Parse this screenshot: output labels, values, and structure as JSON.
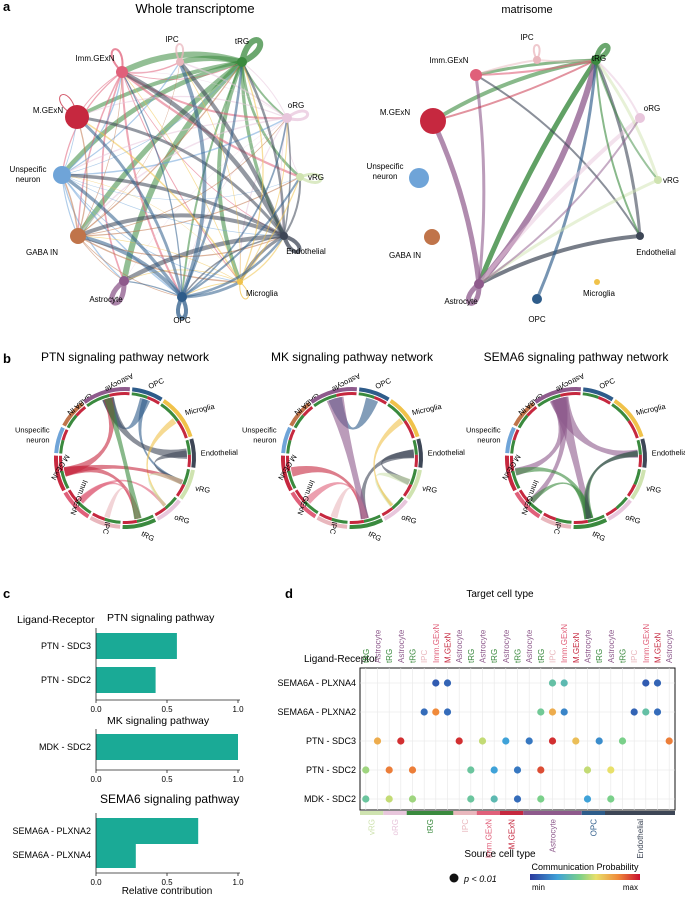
{
  "panel_letters": [
    "a",
    "b",
    "c",
    "d"
  ],
  "colors": {
    "vRG": "#cfe3b0",
    "oRG": "#e8c6dc",
    "tRG": "#3a8a3e",
    "IPC": "#e9b7bd",
    "Imm.GExN": "#e0607a",
    "M.GExN": "#c6283f",
    "Unspecific neuron": "#6fa4d8",
    "GABA IN": "#c0744a",
    "Astrocyte": "#8e5a8c",
    "OPC": "#2e5c8a",
    "Microglia": "#f0c24a",
    "Endothelial": "#3d4656",
    "bar": "#1aaa96"
  },
  "panel_a": {
    "net1": {
      "title": "Whole transcriptome",
      "nodes": [
        "IPC",
        "tRG",
        "Imm.GExN",
        "M.GExN",
        "oRG",
        "Unspecific neuron",
        "vRG",
        "GABA IN",
        "Endothelial",
        "Astrocyte",
        "Microglia",
        "OPC"
      ]
    },
    "net2": {
      "title": "matrisome",
      "nodes": [
        "IPC",
        "tRG",
        "Imm.GExN",
        "M.GExN",
        "oRG",
        "Unspecific neuron",
        "vRG",
        "GABA IN",
        "Endothelial",
        "Astrocyte",
        "Microglia",
        "OPC"
      ]
    }
  },
  "panel_b": {
    "charts": [
      {
        "title": "PTN signaling pathway network"
      },
      {
        "title": "MK signaling pathway network"
      },
      {
        "title": "SEMA6 signaling pathway network"
      }
    ],
    "sectors": [
      "OPC",
      "Microglia",
      "Endothelial",
      "vRG",
      "oRG",
      "tRG",
      "IPC",
      "Imm.GExN",
      "M.GExN",
      "Unspecific neuron",
      "GABA IN",
      "Astrocyte"
    ]
  },
  "chart_data": [
    {
      "type": "bar",
      "orientation": "horizontal",
      "title": "PTN signaling pathway",
      "ylabel": "Ligand-Receptor",
      "categories": [
        "PTN - SDC3",
        "PTN - SDC2"
      ],
      "values": [
        0.57,
        0.42
      ],
      "xlim": [
        0,
        1.0
      ],
      "xticks": [
        "0.0",
        "0.5",
        "1.0"
      ]
    },
    {
      "type": "bar",
      "orientation": "horizontal",
      "title": "MK signaling pathway",
      "categories": [
        "MDK - SDC2"
      ],
      "values": [
        1.0
      ],
      "xlim": [
        0,
        1.0
      ],
      "xticks": [
        "0.0",
        "0.5",
        "1.0"
      ]
    },
    {
      "type": "bar",
      "orientation": "horizontal",
      "title": "SEMA6 signaling pathway",
      "xlabel": "Relative contribution",
      "categories": [
        "SEMA6A - PLXNA2",
        "SEMA6A - PLXNA4"
      ],
      "values": [
        0.72,
        0.28
      ],
      "xlim": [
        0,
        1.0
      ],
      "xticks": [
        "0.0",
        "0.5",
        "1.0"
      ]
    },
    {
      "type": "scatter",
      "subtype": "dot-plot",
      "title": "Target cell type",
      "xlabel": "Source cell type",
      "ylabel": "Ligand-Receptor",
      "rows": [
        "SEMA6A - PLXNA4",
        "SEMA6A - PLXNA2",
        "PTN - SDC3",
        "PTN - SDC2",
        "MDK - SDC2"
      ],
      "target_columns": [
        "tRG",
        "Astrocyte",
        "tRG",
        "Astrocyte",
        "tRG",
        "IPC",
        "Imm.GExN",
        "M.GExN",
        "Astrocyte",
        "tRG",
        "Astrocyte",
        "tRG",
        "Astrocyte",
        "tRG",
        "Astrocyte",
        "tRG",
        "IPC",
        "Imm.GExN",
        "M.GExN",
        "Astrocyte",
        "tRG",
        "Astrocyte",
        "tRG",
        "IPC",
        "Imm.GExN",
        "M.GExN",
        "Astrocyte"
      ],
      "source_groups": [
        {
          "name": "vRG",
          "count": 2
        },
        {
          "name": "oRG",
          "count": 2
        },
        {
          "name": "tRG",
          "count": 4
        },
        {
          "name": "IPC",
          "count": 2
        },
        {
          "name": "Imm.GExN",
          "count": 2
        },
        {
          "name": "M.GExN",
          "count": 2
        },
        {
          "name": "Astrocyte",
          "count": 5
        },
        {
          "name": "OPC",
          "count": 2
        },
        {
          "name": "Endothelial",
          "count": 6
        }
      ],
      "points": [
        {
          "row": 0,
          "col": 6,
          "p": 0.08
        },
        {
          "row": 0,
          "col": 7,
          "p": 0.1
        },
        {
          "row": 0,
          "col": 16,
          "p": 0.38
        },
        {
          "row": 0,
          "col": 17,
          "p": 0.35
        },
        {
          "row": 0,
          "col": 24,
          "p": 0.08
        },
        {
          "row": 0,
          "col": 25,
          "p": 0.1
        },
        {
          "row": 1,
          "col": 5,
          "p": 0.12
        },
        {
          "row": 1,
          "col": 6,
          "p": 0.8
        },
        {
          "row": 1,
          "col": 7,
          "p": 0.12
        },
        {
          "row": 1,
          "col": 15,
          "p": 0.42
        },
        {
          "row": 1,
          "col": 16,
          "p": 0.72
        },
        {
          "row": 1,
          "col": 17,
          "p": 0.18
        },
        {
          "row": 1,
          "col": 23,
          "p": 0.1
        },
        {
          "row": 1,
          "col": 24,
          "p": 0.38
        },
        {
          "row": 1,
          "col": 25,
          "p": 0.12
        },
        {
          "row": 2,
          "col": 1,
          "p": 0.72
        },
        {
          "row": 2,
          "col": 3,
          "p": 0.95
        },
        {
          "row": 2,
          "col": 8,
          "p": 0.95
        },
        {
          "row": 2,
          "col": 10,
          "p": 0.55
        },
        {
          "row": 2,
          "col": 12,
          "p": 0.25
        },
        {
          "row": 2,
          "col": 14,
          "p": 0.15
        },
        {
          "row": 2,
          "col": 16,
          "p": 0.95
        },
        {
          "row": 2,
          "col": 18,
          "p": 0.68
        },
        {
          "row": 2,
          "col": 20,
          "p": 0.2
        },
        {
          "row": 2,
          "col": 22,
          "p": 0.45
        },
        {
          "row": 2,
          "col": 26,
          "p": 0.82
        },
        {
          "row": 3,
          "col": 0,
          "p": 0.5
        },
        {
          "row": 3,
          "col": 2,
          "p": 0.82
        },
        {
          "row": 3,
          "col": 4,
          "p": 0.82
        },
        {
          "row": 3,
          "col": 9,
          "p": 0.4
        },
        {
          "row": 3,
          "col": 11,
          "p": 0.25
        },
        {
          "row": 3,
          "col": 13,
          "p": 0.15
        },
        {
          "row": 3,
          "col": 15,
          "p": 0.9
        },
        {
          "row": 3,
          "col": 19,
          "p": 0.55
        },
        {
          "row": 3,
          "col": 21,
          "p": 0.6
        },
        {
          "row": 4,
          "col": 0,
          "p": 0.4
        },
        {
          "row": 4,
          "col": 2,
          "p": 0.55
        },
        {
          "row": 4,
          "col": 4,
          "p": 0.5
        },
        {
          "row": 4,
          "col": 9,
          "p": 0.4
        },
        {
          "row": 4,
          "col": 11,
          "p": 0.35
        },
        {
          "row": 4,
          "col": 13,
          "p": 0.12
        },
        {
          "row": 4,
          "col": 15,
          "p": 0.45
        },
        {
          "row": 4,
          "col": 19,
          "p": 0.25
        },
        {
          "row": 4,
          "col": 21,
          "p": 0.45
        }
      ],
      "legend": {
        "size_label": "p < 0.01",
        "color_label": "Communication Probability",
        "min": "min",
        "max": "max"
      }
    }
  ]
}
